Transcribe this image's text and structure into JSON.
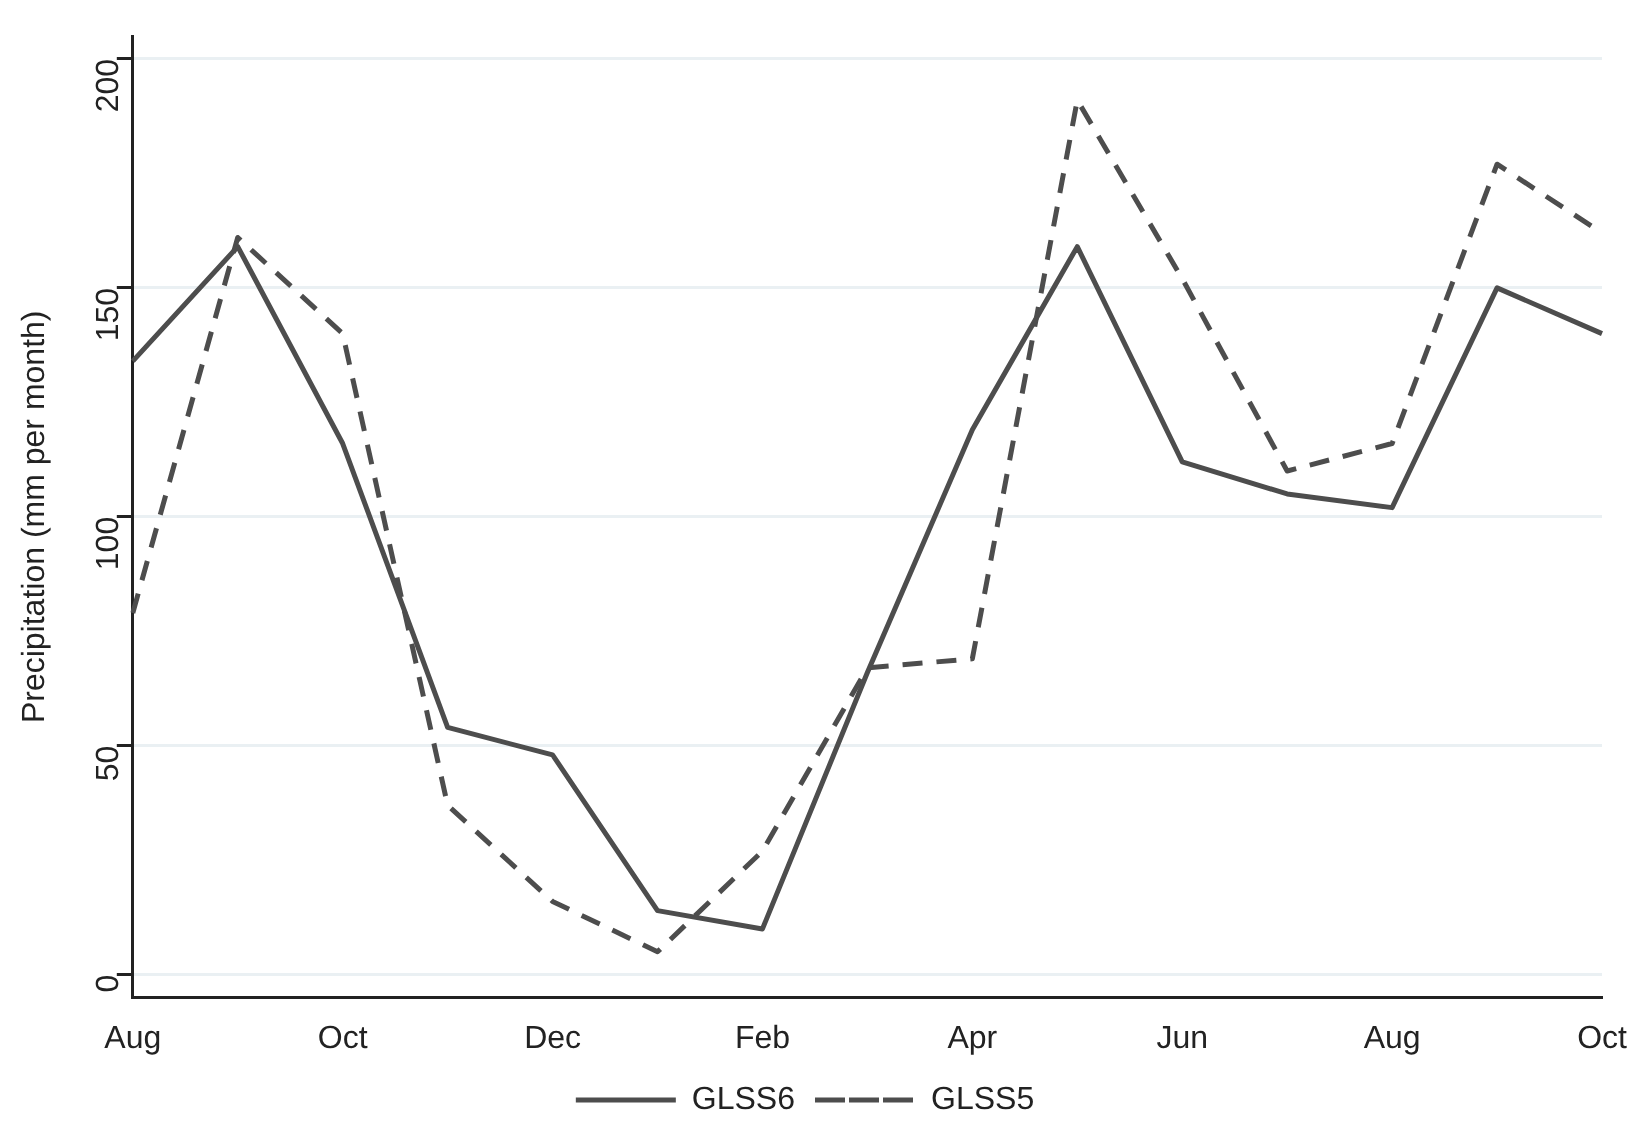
{
  "chart_data": {
    "type": "line",
    "ylabel": "Precipitation (mm per month)",
    "categories": [
      "Aug",
      null,
      "Oct",
      null,
      "Dec",
      null,
      "Feb",
      null,
      "Apr",
      null,
      "Jun",
      null,
      "Aug",
      null,
      "Oct"
    ],
    "series": [
      {
        "name": "GLSS6",
        "color": "#4d4d4d",
        "line_style": "solid",
        "values": [
          134,
          159,
          116,
          54,
          48,
          14,
          10,
          66,
          119,
          159,
          112,
          105,
          102,
          150,
          140
        ]
      },
      {
        "name": "GLSS5",
        "color": "#4d4d4d",
        "line_style": "dashed",
        "values": [
          79,
          161,
          140,
          37,
          16,
          5,
          27,
          67,
          69,
          191,
          152,
          110,
          116,
          177,
          162
        ]
      }
    ],
    "ylim": [
      -5,
      205
    ],
    "yticks": [
      0,
      50,
      100,
      150,
      200
    ],
    "grid": "y",
    "legend": "bottom",
    "marker": "none"
  }
}
